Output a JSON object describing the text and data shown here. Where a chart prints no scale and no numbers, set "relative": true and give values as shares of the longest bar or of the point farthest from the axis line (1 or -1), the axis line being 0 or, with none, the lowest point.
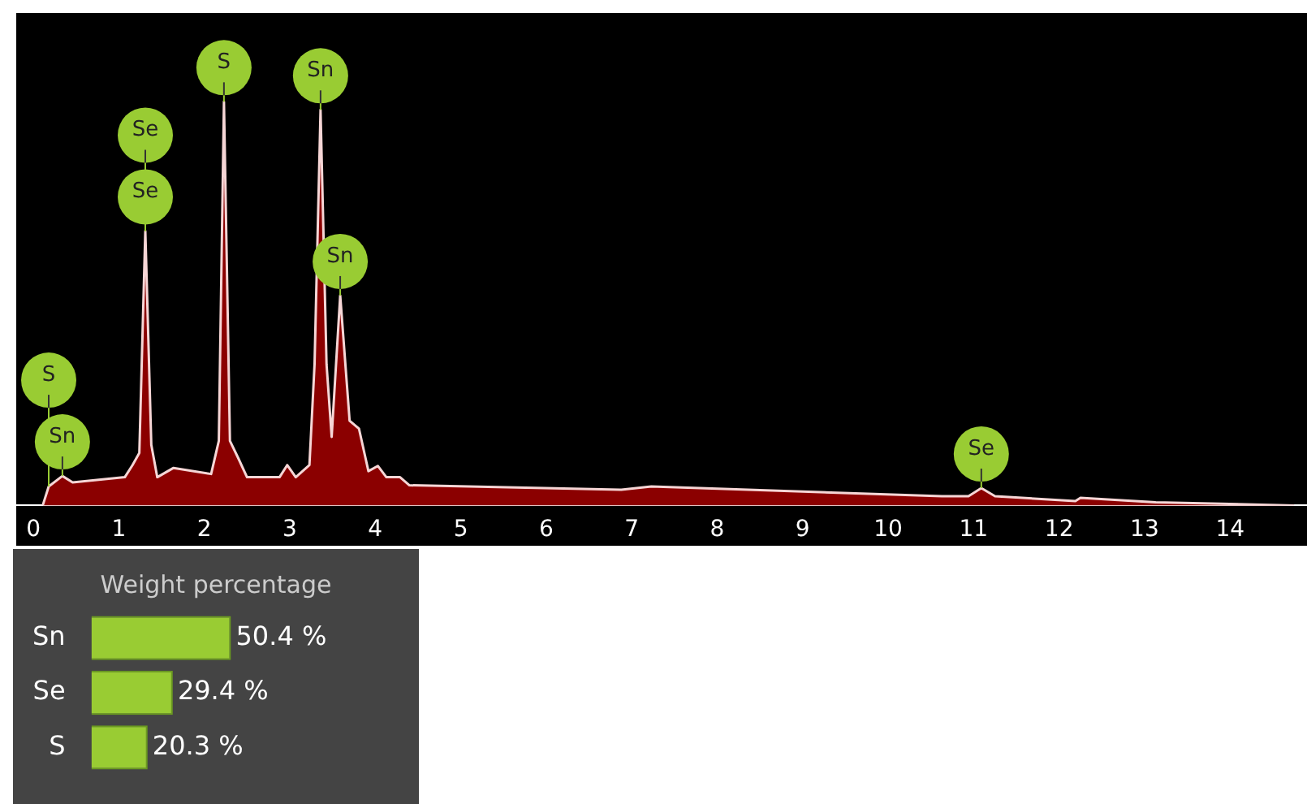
{
  "chart_data": [
    {
      "type": "area",
      "relative": true,
      "x": [
        0.11,
        0.18,
        0.34,
        0.46,
        1.07,
        1.16,
        1.24,
        1.31,
        1.38,
        1.45,
        1.64,
        2.08,
        2.17,
        2.23,
        2.3,
        2.4,
        2.5,
        2.88,
        2.97,
        3.07,
        3.23,
        3.29,
        3.36,
        3.43,
        3.49,
        3.59,
        3.7,
        3.81,
        3.92,
        4.03,
        4.13,
        4.29,
        4.4,
        6.88,
        7.23,
        10.63,
        10.94,
        11.09,
        11.25,
        12.19,
        12.25,
        13.13,
        14.75
      ],
      "series": [
        {
          "color": "#8b0000",
          "values": [
            0,
            0.047,
            0.073,
            0.057,
            0.07,
            0.1,
            0.13,
            0.68,
            0.15,
            0.07,
            0.093,
            0.078,
            0.16,
            1,
            0.16,
            0.116,
            0.07,
            0.07,
            0.1,
            0.07,
            0.1,
            0.35,
            0.98,
            0.35,
            0.17,
            0.52,
            0.21,
            0.19,
            0.085,
            0.098,
            0.07,
            0.07,
            0.05,
            0.039,
            0.047,
            0.023,
            0.023,
            0.043,
            0.023,
            0.011,
            0.019,
            0.008,
            0
          ]
        }
      ],
      "xlim": [
        -0.2,
        14.9
      ],
      "xticks": [
        0,
        1,
        2,
        3,
        4,
        5,
        6,
        7,
        8,
        9,
        10,
        11,
        12,
        13,
        14
      ],
      "grid": false,
      "legend": false,
      "annotations": [
        {
          "text": "S",
          "x": 2.23,
          "y": 1
        },
        {
          "text": "Sn",
          "x": 3.36,
          "y": 0.98
        },
        {
          "text": "Se",
          "x": 1.31,
          "y": 0.68
        },
        {
          "text": "Se",
          "x": 1.31,
          "y": 0.68
        },
        {
          "text": "Sn",
          "x": 3.59,
          "y": 0.52
        },
        {
          "text": "Sn",
          "x": 0.34,
          "y": 0.073
        },
        {
          "text": "S",
          "x": 0.18,
          "y": 0.047
        },
        {
          "text": "Se",
          "x": 11.09,
          "y": 0.043
        }
      ]
    },
    {
      "type": "bar",
      "orientation": "horizontal",
      "title": "Weight percentage",
      "categories": [
        "Sn",
        "Se",
        "S"
      ],
      "values": [
        50.4,
        29.4,
        20.3
      ],
      "color": "#99cc33",
      "value_labels": [
        "50.4 %",
        "29.4 %",
        "20.3 %"
      ],
      "legend": false,
      "grid": false
    }
  ]
}
